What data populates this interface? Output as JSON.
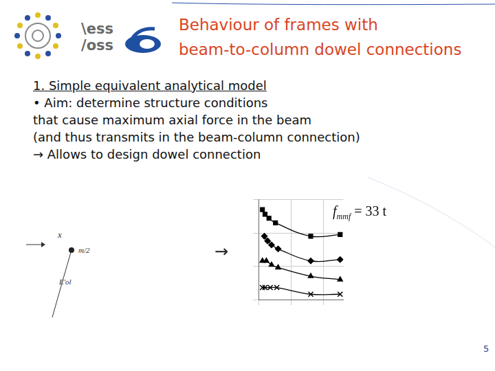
{
  "header": {
    "logo_text": [
      "\\ess",
      "/oss"
    ],
    "title": [
      "Behaviour of frames with",
      "beam-to-column dowel connections"
    ]
  },
  "body": {
    "heading": "1. Simple equivalent analytical model",
    "lines": [
      "• Aim: determine structure conditions",
      "that cause maximum axial force in the beam",
      "(and thus transmits in the beam-column connection)",
      "→ Allows to design dowel connection"
    ]
  },
  "sketch": {
    "labels": [
      "x",
      "m/2",
      "E'ol"
    ]
  },
  "arrow": "→",
  "chart_data": {
    "type": "line",
    "xlim": [
      0,
      2.6
    ],
    "xticks": [
      0,
      1,
      2
    ],
    "ylim": [
      0,
      3
    ],
    "yticks": [
      0,
      1,
      2,
      3
    ],
    "grid": true,
    "tick_labels": false,
    "annotation": {
      "text": "f",
      "sub": "mmf",
      "rest": " = 33 t"
    },
    "series": [
      {
        "color": "#000000",
        "marker": "square",
        "line_style": "solid",
        "x": [
          0.12,
          0.2,
          0.32,
          0.52,
          1.6,
          2.5
        ],
        "values": [
          2.7,
          2.56,
          2.44,
          2.3,
          1.9,
          1.95
        ]
      },
      {
        "color": "#000000",
        "marker": "diamond",
        "line_style": "solid",
        "x": [
          0.18,
          0.28,
          0.4,
          0.6,
          1.6,
          2.5
        ],
        "values": [
          1.9,
          1.76,
          1.64,
          1.52,
          1.16,
          1.2
        ]
      },
      {
        "color": "#000000",
        "marker": "triangle",
        "line_style": "solid",
        "x": [
          0.12,
          0.24,
          0.4,
          0.6,
          1.6,
          2.5
        ],
        "values": [
          1.16,
          1.16,
          1.04,
          0.96,
          0.7,
          0.6
        ]
      },
      {
        "color": "#000000",
        "marker": "x",
        "line_style": "solid",
        "x": [
          0.12,
          0.2,
          0.36,
          0.56,
          1.6,
          2.5
        ],
        "values": [
          0.36,
          0.36,
          0.36,
          0.36,
          0.16,
          0.16
        ]
      }
    ]
  },
  "page_number": "5"
}
